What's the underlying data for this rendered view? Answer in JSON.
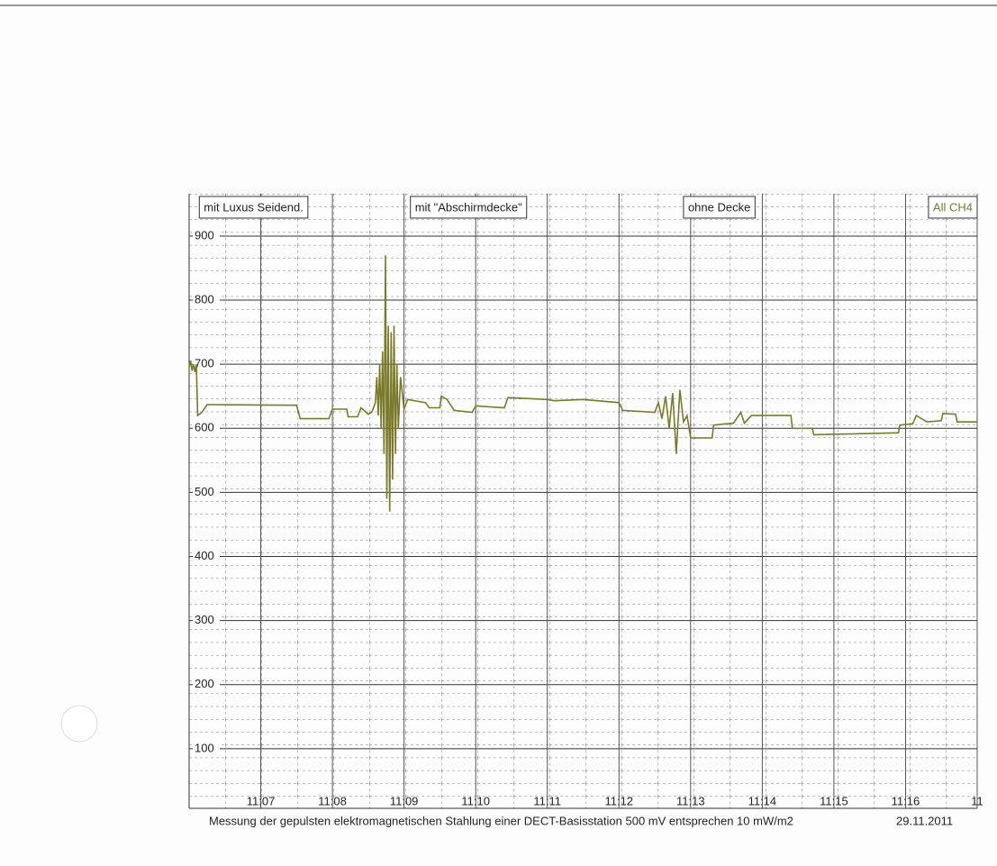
{
  "chart_data": {
    "type": "line",
    "caption": "Messung der gepulsten elektromagnetischen Stahlung einer DECT-Basisstation 500 mV entsprechen 10 mW/m2",
    "date": "29.11.2011",
    "annotations": [
      {
        "text": "mit Luxus Seidend.",
        "x": 6.9
      },
      {
        "text": "mit \"Abschirmdecke\"",
        "x": 9.9
      },
      {
        "text": "ohne Decke",
        "x": 13.4
      }
    ],
    "legend": "upper right",
    "grid": true,
    "xlim": [
      6,
      17
    ],
    "ylim": [
      0,
      966
    ],
    "xticks": [
      {
        "value": 7,
        "label": "11:07"
      },
      {
        "value": 8,
        "label": "11:08"
      },
      {
        "value": 9,
        "label": "11:09"
      },
      {
        "value": 10,
        "label": "11:10"
      },
      {
        "value": 11,
        "label": "11:11"
      },
      {
        "value": 12,
        "label": "11:12"
      },
      {
        "value": 13,
        "label": "11:13"
      },
      {
        "value": 14,
        "label": "11:14"
      },
      {
        "value": 15,
        "label": "11:15"
      },
      {
        "value": 16,
        "label": "11:16"
      },
      {
        "value": 17,
        "label": "11"
      }
    ],
    "yticks": [
      100,
      200,
      300,
      400,
      500,
      600,
      700,
      800,
      900
    ],
    "x": [
      6.0,
      6.02,
      6.04,
      6.06,
      6.08,
      6.1,
      6.12,
      6.18,
      6.25,
      7.5,
      7.55,
      7.95,
      8.0,
      8.2,
      8.22,
      8.35,
      8.4,
      8.5,
      8.55,
      8.6,
      8.62,
      8.64,
      8.66,
      8.68,
      8.7,
      8.72,
      8.74,
      8.76,
      8.78,
      8.8,
      8.82,
      8.84,
      8.86,
      8.88,
      8.9,
      8.92,
      8.95,
      9.0,
      9.05,
      9.3,
      9.35,
      9.5,
      9.52,
      9.6,
      9.7,
      9.95,
      10.0,
      10.4,
      10.45,
      11.0,
      11.1,
      11.5,
      12.0,
      12.05,
      12.5,
      12.55,
      12.6,
      12.65,
      12.7,
      12.75,
      12.8,
      12.85,
      12.9,
      12.95,
      13.0,
      13.3,
      13.32,
      13.6,
      13.7,
      13.75,
      13.85,
      14.4,
      14.42,
      14.7,
      14.72,
      15.9,
      15.92,
      16.1,
      16.15,
      16.3,
      16.5,
      16.52,
      16.7,
      16.72,
      17.0
    ],
    "series": [
      {
        "name": "All CH4",
        "color": "#7b7a2c",
        "values": [
          695,
          705,
          690,
          700,
          688,
          700,
          620,
          625,
          637,
          636,
          615,
          615,
          630,
          630,
          618,
          618,
          632,
          622,
          625,
          640,
          680,
          620,
          700,
          600,
          720,
          560,
          870,
          490,
          760,
          470,
          750,
          520,
          760,
          560,
          700,
          600,
          680,
          630,
          645,
          640,
          632,
          632,
          650,
          645,
          628,
          625,
          635,
          632,
          648,
          645,
          643,
          645,
          640,
          628,
          625,
          640,
          615,
          650,
          600,
          655,
          560,
          660,
          610,
          620,
          585,
          585,
          605,
          608,
          625,
          608,
          620,
          620,
          600,
          600,
          590,
          593,
          605,
          607,
          620,
          610,
          612,
          623,
          622,
          610,
          610
        ]
      }
    ]
  }
}
